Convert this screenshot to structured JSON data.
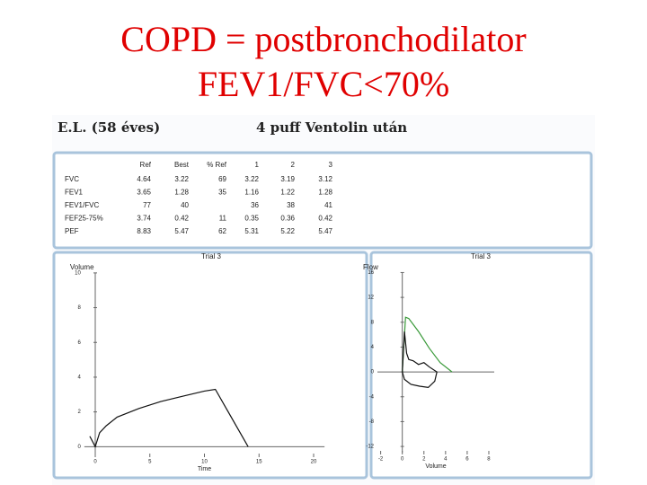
{
  "title": [
    "COPD = postbronchodilator",
    "FEV1/FVC<70%"
  ],
  "header": {
    "patient": "E.L. (58 éves)",
    "note": "4 puff Ventolin után"
  },
  "table": {
    "columns": [
      "Ref",
      "Best",
      "% Ref",
      "1",
      "2",
      "3"
    ],
    "rows": [
      [
        "FVC",
        "4.64",
        "3.22",
        "69",
        "3.22",
        "3.19",
        "3.12"
      ],
      [
        "FEV1",
        "3.65",
        "1.28",
        "35",
        "1.16",
        "1.22",
        "1.28"
      ],
      [
        "FEV1/FVC",
        "77",
        "40",
        null,
        "36",
        "38",
        "41"
      ],
      [
        "FEF25-75%",
        "3.74",
        "0.42",
        "11",
        "0.35",
        "0.36",
        "0.42"
      ],
      [
        "PEF",
        "8.83",
        "5.47",
        "62",
        "5.31",
        "5.22",
        "5.47"
      ]
    ]
  },
  "chart_data": [
    {
      "type": "line",
      "title": "Trial 3",
      "x_label": "Time",
      "y_label": "Volume",
      "xlim": [
        -1,
        21
      ],
      "ylim": [
        -0.5,
        10.2
      ],
      "xticks": [
        0,
        5,
        10,
        15,
        20
      ],
      "yticks": [
        0,
        2,
        4,
        6,
        8,
        10
      ],
      "series": [
        {
          "color": "#111111",
          "x": [
            -0.5,
            0,
            0.4,
            1,
            2,
            4,
            6,
            8,
            10,
            11,
            12,
            13,
            14
          ],
          "values": [
            0.6,
            0,
            0.8,
            1.2,
            1.7,
            2.2,
            2.6,
            2.9,
            3.2,
            3.3,
            2.2,
            1.1,
            0
          ]
        }
      ]
    },
    {
      "type": "line",
      "title": "Trial 3",
      "x_label": "Volume",
      "y_label": "Flow",
      "xlim": [
        -2.3,
        8.5
      ],
      "ylim": [
        -13,
        16.5
      ],
      "xticks": [
        -2,
        0,
        2,
        4,
        6,
        8
      ],
      "yticks": [
        -12,
        -8,
        -4,
        0,
        4,
        8,
        12,
        16
      ],
      "series": [
        {
          "color": "#3a9a3a",
          "x": [
            0,
            0.3,
            0.6,
            1.5,
            2.5,
            3.5,
            4.6
          ],
          "values": [
            0,
            8.8,
            8.6,
            6.5,
            3.8,
            1.5,
            0
          ]
        },
        {
          "color": "#111111",
          "x": [
            0,
            0.2,
            0.4,
            0.6,
            1,
            1.5,
            2,
            2.5,
            3.2,
            3,
            2.4,
            1.6,
            0.8,
            0.2,
            0
          ],
          "values": [
            0,
            6.5,
            3,
            2,
            1.8,
            1.2,
            1.5,
            0.8,
            0,
            -1.5,
            -2.5,
            -2.3,
            -2,
            -1.2,
            0
          ]
        }
      ]
    }
  ]
}
